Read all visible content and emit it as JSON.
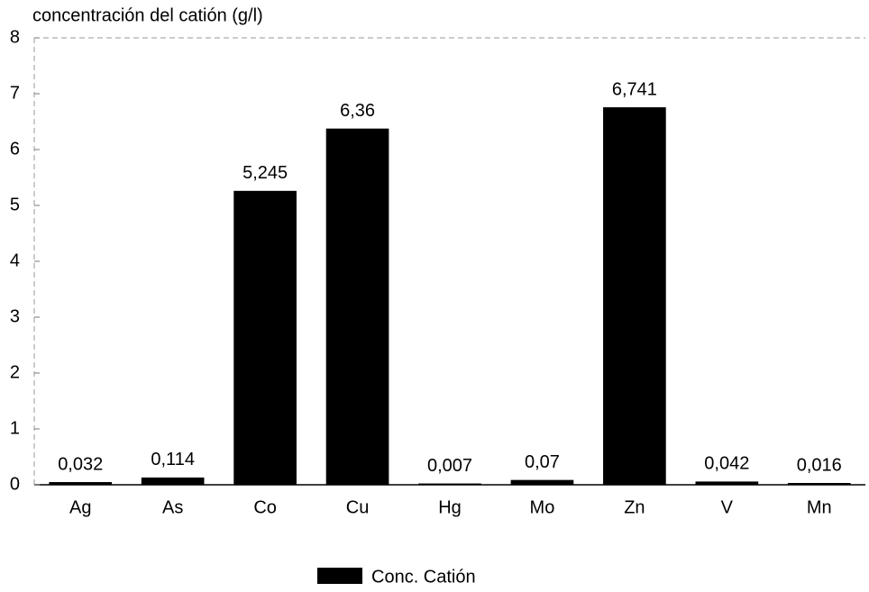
{
  "chart_data": {
    "type": "bar",
    "title": "concentración del catión (g/l)",
    "categories": [
      "Ag",
      "As",
      "Co",
      "Cu",
      "Hg",
      "Mo",
      "Zn",
      "V",
      "Mn"
    ],
    "series": [
      {
        "name": "Conc. Catión",
        "color": "#000000",
        "values": [
          0.032,
          0.114,
          5.245,
          6.36,
          0.007,
          0.07,
          6.741,
          0.042,
          0.016
        ],
        "value_labels": [
          "0,032",
          "0,114",
          "5,245",
          "6,36",
          "0,007",
          "0,07",
          "6,741",
          "0,042",
          "0,016"
        ]
      }
    ],
    "ylim": [
      0,
      8
    ],
    "yticks": [
      0,
      1,
      2,
      3,
      4,
      5,
      6,
      7,
      8
    ],
    "grid": false,
    "legend": "bottom"
  }
}
